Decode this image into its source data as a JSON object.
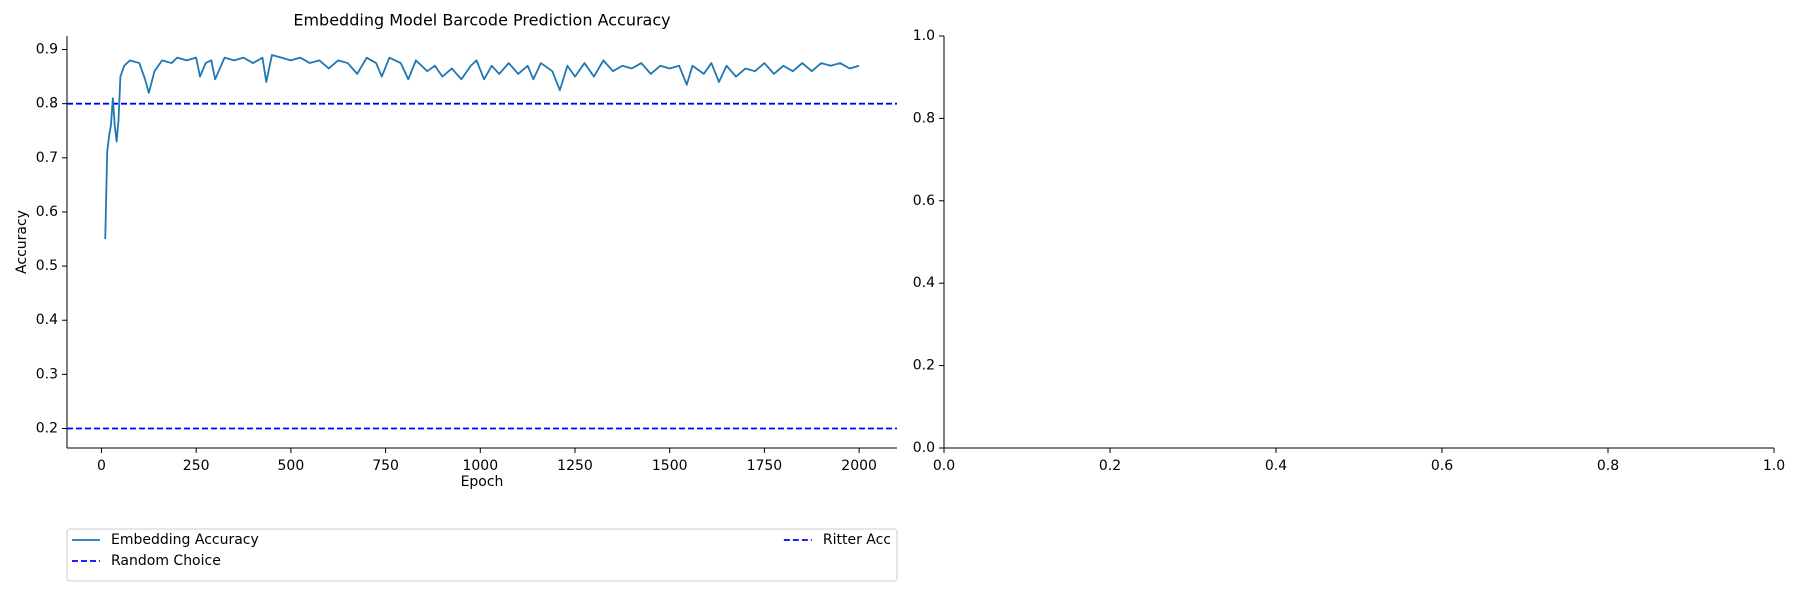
{
  "chart_data": [
    {
      "type": "line",
      "title": "Embedding Model Barcode Prediction Accuracy",
      "xlabel": "Epoch",
      "ylabel": "Accuracy",
      "x": [
        10,
        15,
        20,
        25,
        30,
        35,
        40,
        45,
        50,
        60,
        75,
        100,
        115,
        125,
        140,
        160,
        185,
        200,
        225,
        250,
        260,
        275,
        290,
        300,
        325,
        350,
        375,
        400,
        425,
        435,
        450,
        475,
        500,
        525,
        550,
        575,
        600,
        625,
        650,
        675,
        700,
        725,
        740,
        760,
        790,
        810,
        830,
        860,
        880,
        900,
        925,
        950,
        975,
        990,
        1010,
        1030,
        1050,
        1075,
        1100,
        1125,
        1140,
        1160,
        1190,
        1210,
        1230,
        1250,
        1275,
        1300,
        1325,
        1350,
        1375,
        1400,
        1425,
        1450,
        1475,
        1500,
        1525,
        1545,
        1560,
        1590,
        1610,
        1630,
        1650,
        1675,
        1700,
        1725,
        1750,
        1775,
        1800,
        1825,
        1850,
        1875,
        1900,
        1925,
        1950,
        1975,
        2000
      ],
      "series": [
        {
          "name": "Embedding Accuracy",
          "color": "#1f77b4",
          "values": [
            0.55,
            0.71,
            0.74,
            0.76,
            0.81,
            0.76,
            0.73,
            0.77,
            0.85,
            0.87,
            0.88,
            0.875,
            0.845,
            0.82,
            0.86,
            0.88,
            0.875,
            0.885,
            0.88,
            0.885,
            0.85,
            0.875,
            0.88,
            0.845,
            0.885,
            0.88,
            0.885,
            0.875,
            0.885,
            0.84,
            0.89,
            0.885,
            0.88,
            0.885,
            0.875,
            0.88,
            0.865,
            0.88,
            0.875,
            0.855,
            0.885,
            0.875,
            0.85,
            0.885,
            0.875,
            0.845,
            0.88,
            0.86,
            0.87,
            0.85,
            0.865,
            0.845,
            0.87,
            0.88,
            0.845,
            0.87,
            0.855,
            0.875,
            0.855,
            0.87,
            0.845,
            0.875,
            0.86,
            0.825,
            0.87,
            0.85,
            0.875,
            0.85,
            0.88,
            0.86,
            0.87,
            0.865,
            0.875,
            0.855,
            0.87,
            0.865,
            0.87,
            0.835,
            0.87,
            0.855,
            0.875,
            0.84,
            0.87,
            0.85,
            0.865,
            0.86,
            0.875,
            0.855,
            0.87,
            0.86,
            0.875,
            0.86,
            0.875,
            0.87,
            0.875,
            0.865,
            0.87
          ]
        }
      ],
      "hlines": [
        {
          "name": "Random Choice",
          "color": "#0000ff",
          "value": 0.2,
          "style": "dashed"
        },
        {
          "name": "Ritter Acc",
          "color": "#0000ff",
          "value": 0.8,
          "style": "dashed"
        }
      ],
      "xlim": [
        -91,
        2100
      ],
      "xticks": [
        0,
        250,
        500,
        750,
        1000,
        1250,
        1500,
        1750,
        2000
      ],
      "ylim": [
        0.164,
        0.925
      ],
      "yticks": [
        0.2,
        0.3,
        0.4,
        0.5,
        0.6,
        0.7,
        0.8,
        0.9
      ],
      "legend": "below"
    },
    {
      "type": "empty",
      "xlim": [
        0,
        1
      ],
      "xticks": [
        {
          "value": 0,
          "label": "0.0"
        },
        0.2,
        0.4,
        0.6,
        0.8,
        {
          "value": 1,
          "label": "1.0"
        }
      ],
      "ylim": [
        0,
        1
      ],
      "yticks": [
        {
          "value": 0,
          "label": "0.0"
        },
        0.2,
        0.4,
        0.6,
        0.8,
        {
          "value": 1,
          "label": "1.0"
        }
      ]
    }
  ]
}
